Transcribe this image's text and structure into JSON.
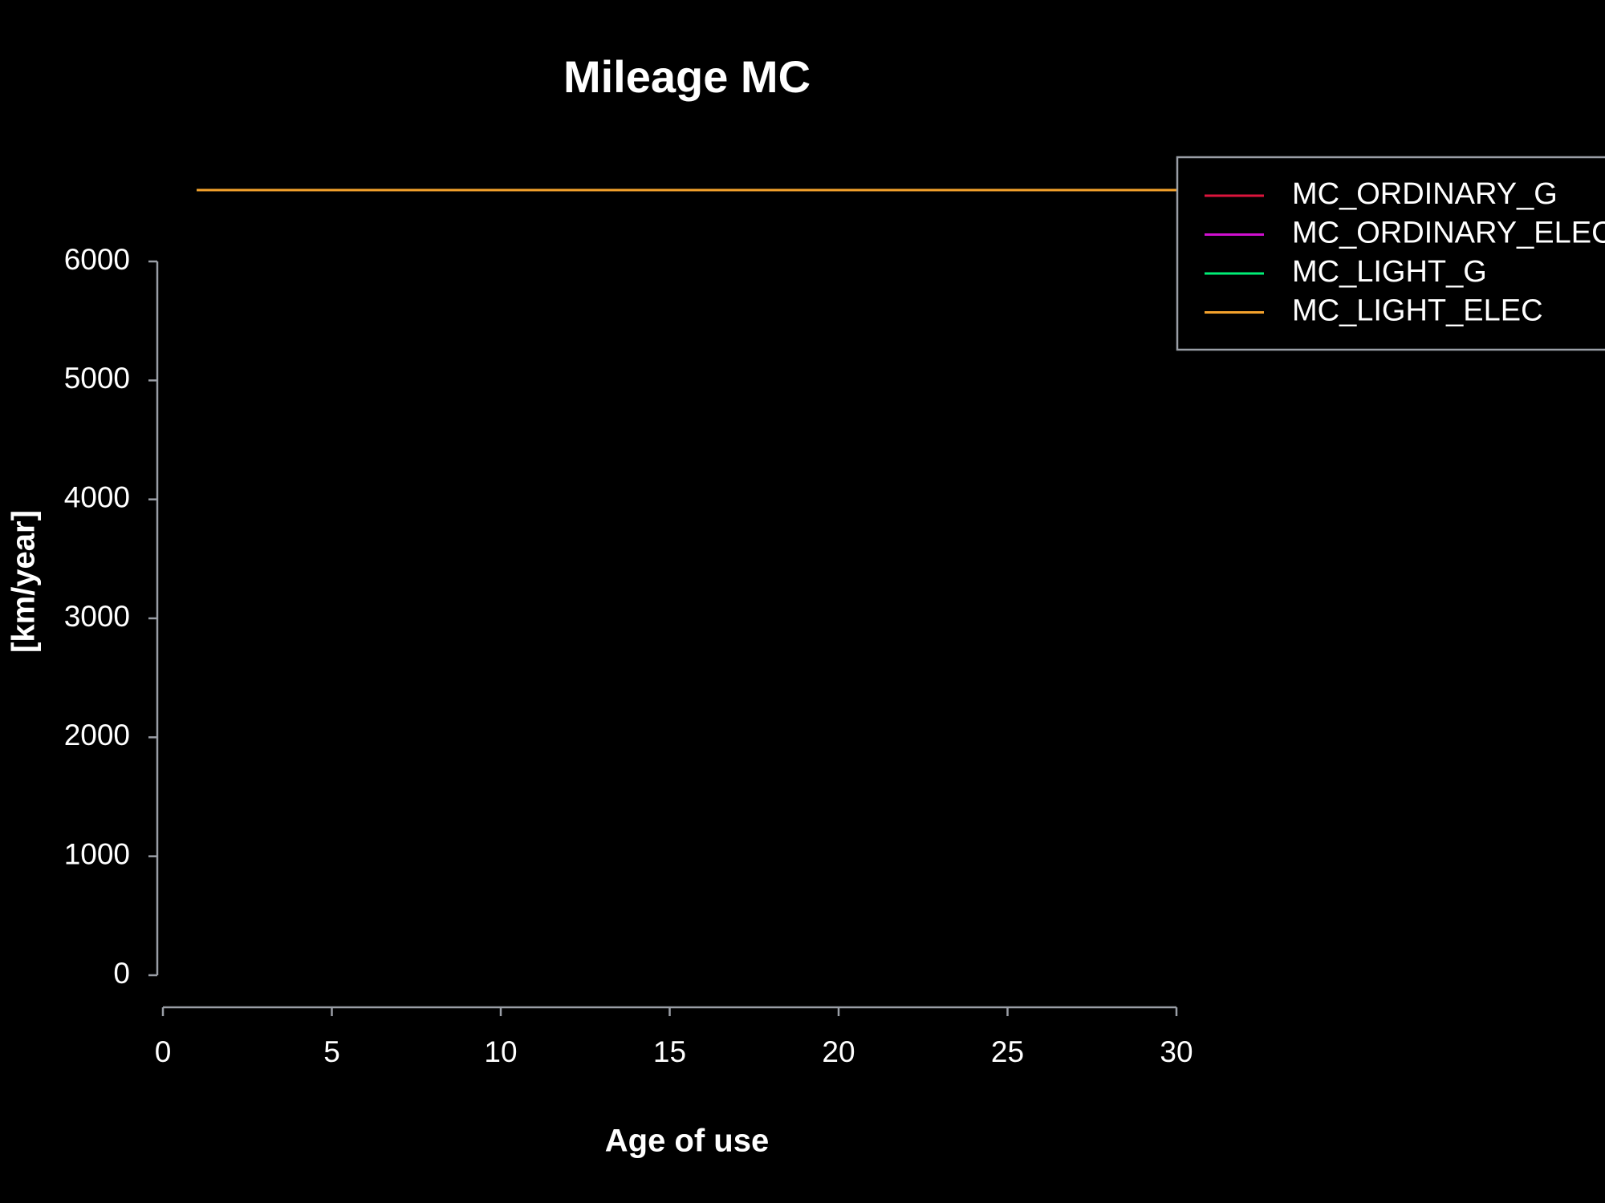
{
  "chart_data": {
    "type": "line",
    "title": "Mileage MC",
    "x_label": "Age of use",
    "y_label": "[km/year]",
    "x": [
      1,
      2,
      3,
      4,
      5,
      6,
      7,
      8,
      9,
      10,
      11,
      12,
      13,
      14,
      15,
      16,
      17,
      18,
      19,
      20,
      21,
      22,
      23,
      24,
      25,
      26,
      27,
      28,
      29,
      30
    ],
    "series": [
      {
        "name": "MC_ORDINARY_G",
        "color": "#dc143c",
        "values": [
          6600,
          6600,
          6600,
          6600,
          6600,
          6600,
          6600,
          6600,
          6600,
          6600,
          6600,
          6600,
          6600,
          6600,
          6600,
          6600,
          6600,
          6600,
          6600,
          6600,
          6600,
          6600,
          6600,
          6600,
          6600,
          6600,
          6600,
          6600,
          6600,
          6600
        ]
      },
      {
        "name": "MC_ORDINARY_ELEC",
        "color": "#d010d0",
        "values": [
          6600,
          6600,
          6600,
          6600,
          6600,
          6600,
          6600,
          6600,
          6600,
          6600,
          6600,
          6600,
          6600,
          6600,
          6600,
          6600,
          6600,
          6600,
          6600,
          6600,
          6600,
          6600,
          6600,
          6600,
          6600,
          6600,
          6600,
          6600,
          6600,
          6600
        ]
      },
      {
        "name": "MC_LIGHT_G",
        "color": "#00ee76",
        "values": [
          6600,
          6600,
          6600,
          6600,
          6600,
          6600,
          6600,
          6600,
          6600,
          6600,
          6600,
          6600,
          6600,
          6600,
          6600,
          6600,
          6600,
          6600,
          6600,
          6600,
          6600,
          6600,
          6600,
          6600,
          6600,
          6600,
          6600,
          6600,
          6600,
          6600
        ]
      },
      {
        "name": "MC_LIGHT_ELEC",
        "color": "#f4a22c",
        "values": [
          6600,
          6600,
          6600,
          6600,
          6600,
          6600,
          6600,
          6600,
          6600,
          6600,
          6600,
          6600,
          6600,
          6600,
          6600,
          6600,
          6600,
          6600,
          6600,
          6600,
          6600,
          6600,
          6600,
          6600,
          6600,
          6600,
          6600,
          6600,
          6600,
          6600
        ]
      }
    ],
    "xlim": [
      0,
      30
    ],
    "xticks": [
      0,
      5,
      10,
      15,
      20,
      25,
      30
    ],
    "ylim": [
      0,
      6600
    ],
    "yticks": [
      0,
      1000,
      2000,
      3000,
      4000,
      5000,
      6000
    ],
    "grid": false,
    "legend_position": "top-right"
  }
}
